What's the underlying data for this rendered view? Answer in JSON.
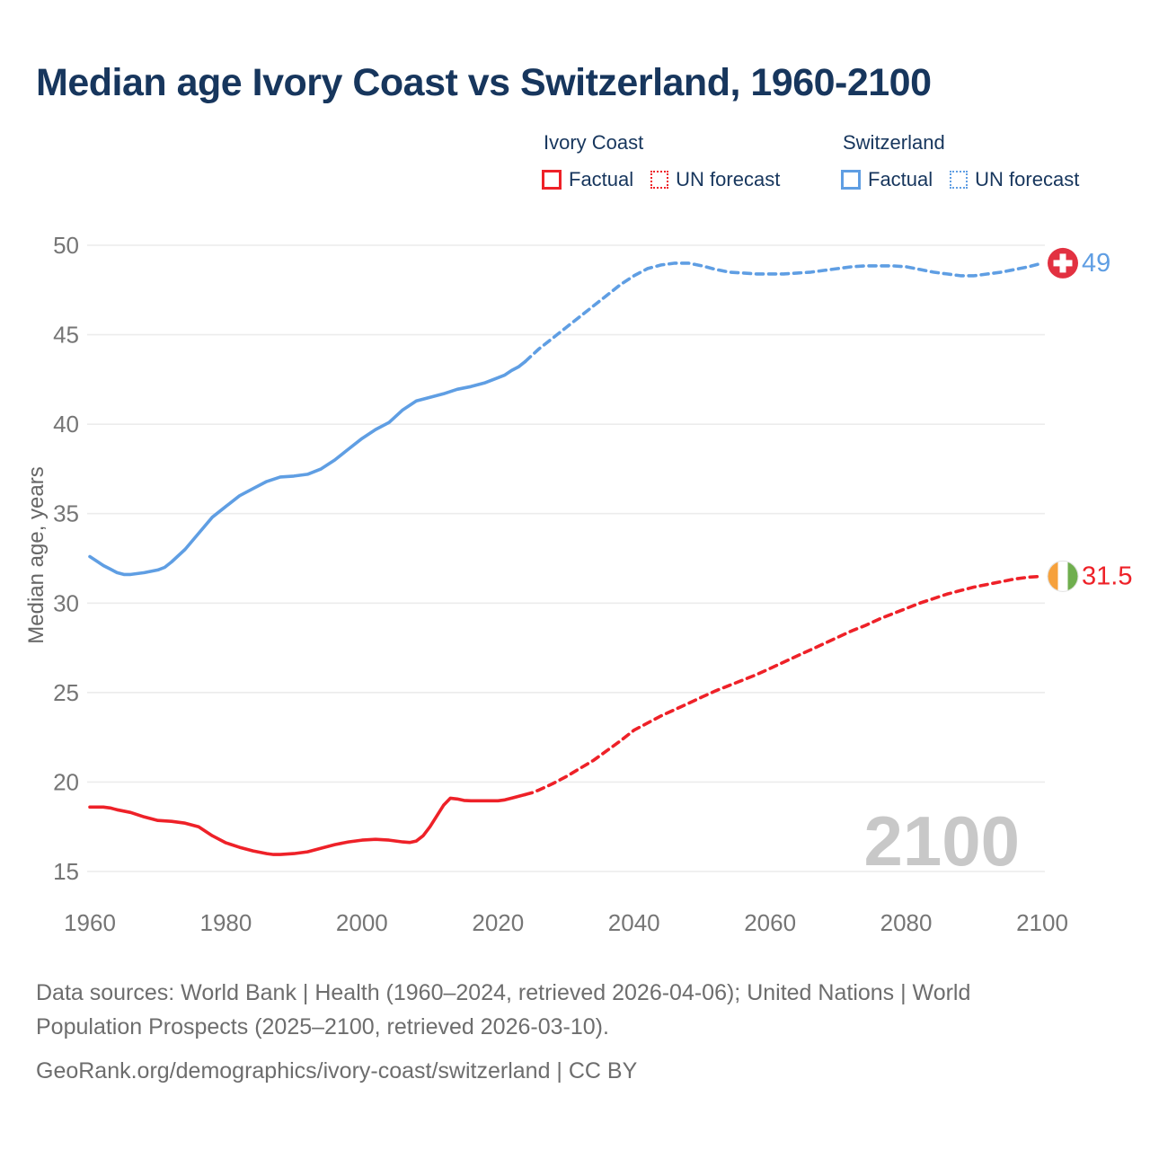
{
  "title": "Median age Ivory Coast vs Switzerland, 1960-2100",
  "legend": {
    "groups": [
      {
        "name": "Ivory Coast",
        "color": "#ee2128",
        "items": [
          {
            "label": "Factual",
            "style": "solid"
          },
          {
            "label": "UN forecast",
            "style": "dotted"
          }
        ]
      },
      {
        "name": "Switzerland",
        "color": "#5f9ee3",
        "items": [
          {
            "label": "Factual",
            "style": "solid"
          },
          {
            "label": "UN forecast",
            "style": "dotted"
          }
        ]
      }
    ]
  },
  "chart_data": {
    "type": "line",
    "title": "Median age Ivory Coast vs Switzerland, 1960-2100",
    "xlabel": "",
    "ylabel": "Median age, years",
    "xlim": [
      1960,
      2100
    ],
    "ylim": [
      15,
      50
    ],
    "xticks": [
      1960,
      1980,
      2000,
      2020,
      2040,
      2060,
      2080,
      2100
    ],
    "yticks": [
      15,
      20,
      25,
      30,
      35,
      40,
      45,
      50
    ],
    "grid": "horizontal-only",
    "legend_position": "top",
    "watermark": "2100",
    "series": [
      {
        "name": "Switzerland — Factual",
        "color": "#5f9ee3",
        "dashed": false,
        "points": [
          [
            1960,
            32.6
          ],
          [
            1961,
            32.35
          ],
          [
            1962,
            32.1
          ],
          [
            1963,
            31.9
          ],
          [
            1964,
            31.7
          ],
          [
            1965,
            31.6
          ],
          [
            1966,
            31.6
          ],
          [
            1967,
            31.65
          ],
          [
            1968,
            31.7
          ],
          [
            1970,
            31.85
          ],
          [
            1971,
            32.0
          ],
          [
            1972,
            32.3
          ],
          [
            1974,
            33.0
          ],
          [
            1976,
            33.9
          ],
          [
            1978,
            34.8
          ],
          [
            1980,
            35.4
          ],
          [
            1982,
            36.0
          ],
          [
            1984,
            36.4
          ],
          [
            1986,
            36.8
          ],
          [
            1988,
            37.05
          ],
          [
            1990,
            37.1
          ],
          [
            1992,
            37.2
          ],
          [
            1994,
            37.5
          ],
          [
            1996,
            38.0
          ],
          [
            1998,
            38.6
          ],
          [
            2000,
            39.2
          ],
          [
            2002,
            39.7
          ],
          [
            2004,
            40.1
          ],
          [
            2006,
            40.8
          ],
          [
            2008,
            41.3
          ],
          [
            2010,
            41.5
          ],
          [
            2012,
            41.7
          ],
          [
            2014,
            41.95
          ],
          [
            2016,
            42.1
          ],
          [
            2018,
            42.3
          ],
          [
            2020,
            42.6
          ],
          [
            2021,
            42.75
          ],
          [
            2022,
            43.0
          ],
          [
            2023,
            43.2
          ],
          [
            2024,
            43.5
          ]
        ]
      },
      {
        "name": "Switzerland — UN forecast",
        "color": "#5f9ee3",
        "dashed": true,
        "points": [
          [
            2024,
            43.5
          ],
          [
            2026,
            44.2
          ],
          [
            2028,
            44.8
          ],
          [
            2030,
            45.4
          ],
          [
            2032,
            46.0
          ],
          [
            2034,
            46.6
          ],
          [
            2036,
            47.2
          ],
          [
            2038,
            47.8
          ],
          [
            2040,
            48.3
          ],
          [
            2042,
            48.7
          ],
          [
            2044,
            48.9
          ],
          [
            2046,
            49.0
          ],
          [
            2048,
            49.0
          ],
          [
            2050,
            48.85
          ],
          [
            2052,
            48.65
          ],
          [
            2054,
            48.5
          ],
          [
            2056,
            48.45
          ],
          [
            2058,
            48.4
          ],
          [
            2060,
            48.4
          ],
          [
            2062,
            48.4
          ],
          [
            2064,
            48.45
          ],
          [
            2066,
            48.5
          ],
          [
            2068,
            48.6
          ],
          [
            2070,
            48.7
          ],
          [
            2072,
            48.8
          ],
          [
            2074,
            48.85
          ],
          [
            2076,
            48.85
          ],
          [
            2078,
            48.85
          ],
          [
            2080,
            48.8
          ],
          [
            2082,
            48.65
          ],
          [
            2084,
            48.5
          ],
          [
            2086,
            48.4
          ],
          [
            2088,
            48.3
          ],
          [
            2090,
            48.3
          ],
          [
            2092,
            48.4
          ],
          [
            2094,
            48.5
          ],
          [
            2096,
            48.65
          ],
          [
            2098,
            48.8
          ],
          [
            2100,
            49.0
          ]
        ]
      },
      {
        "name": "Ivory Coast — Factual",
        "color": "#ee2128",
        "dashed": false,
        "points": [
          [
            1960,
            18.6
          ],
          [
            1962,
            18.6
          ],
          [
            1963,
            18.55
          ],
          [
            1964,
            18.45
          ],
          [
            1966,
            18.3
          ],
          [
            1968,
            18.05
          ],
          [
            1970,
            17.85
          ],
          [
            1972,
            17.8
          ],
          [
            1974,
            17.7
          ],
          [
            1976,
            17.5
          ],
          [
            1978,
            17.0
          ],
          [
            1980,
            16.6
          ],
          [
            1982,
            16.35
          ],
          [
            1984,
            16.15
          ],
          [
            1986,
            16.0
          ],
          [
            1987,
            15.95
          ],
          [
            1988,
            15.95
          ],
          [
            1990,
            16.0
          ],
          [
            1992,
            16.1
          ],
          [
            1994,
            16.3
          ],
          [
            1996,
            16.5
          ],
          [
            1998,
            16.65
          ],
          [
            2000,
            16.75
          ],
          [
            2002,
            16.8
          ],
          [
            2004,
            16.75
          ],
          [
            2006,
            16.65
          ],
          [
            2007,
            16.62
          ],
          [
            2008,
            16.7
          ],
          [
            2009,
            17.0
          ],
          [
            2010,
            17.5
          ],
          [
            2011,
            18.1
          ],
          [
            2012,
            18.7
          ],
          [
            2013,
            19.1
          ],
          [
            2014,
            19.05
          ],
          [
            2015,
            18.97
          ],
          [
            2016,
            18.95
          ],
          [
            2018,
            18.95
          ],
          [
            2020,
            18.95
          ],
          [
            2021,
            19.0
          ],
          [
            2022,
            19.1
          ],
          [
            2023,
            19.2
          ],
          [
            2024,
            19.3
          ]
        ]
      },
      {
        "name": "Ivory Coast — UN forecast",
        "color": "#ee2128",
        "dashed": true,
        "points": [
          [
            2024,
            19.3
          ],
          [
            2025,
            19.4
          ],
          [
            2026,
            19.55
          ],
          [
            2028,
            19.9
          ],
          [
            2030,
            20.3
          ],
          [
            2032,
            20.75
          ],
          [
            2034,
            21.2
          ],
          [
            2036,
            21.75
          ],
          [
            2038,
            22.3
          ],
          [
            2040,
            22.9
          ],
          [
            2042,
            23.3
          ],
          [
            2044,
            23.7
          ],
          [
            2046,
            24.05
          ],
          [
            2048,
            24.4
          ],
          [
            2050,
            24.75
          ],
          [
            2052,
            25.1
          ],
          [
            2054,
            25.4
          ],
          [
            2056,
            25.7
          ],
          [
            2058,
            26.0
          ],
          [
            2060,
            26.35
          ],
          [
            2062,
            26.7
          ],
          [
            2064,
            27.05
          ],
          [
            2066,
            27.4
          ],
          [
            2068,
            27.75
          ],
          [
            2070,
            28.1
          ],
          [
            2072,
            28.45
          ],
          [
            2074,
            28.75
          ],
          [
            2076,
            29.1
          ],
          [
            2078,
            29.4
          ],
          [
            2080,
            29.7
          ],
          [
            2082,
            30.0
          ],
          [
            2084,
            30.25
          ],
          [
            2086,
            30.5
          ],
          [
            2088,
            30.7
          ],
          [
            2090,
            30.9
          ],
          [
            2092,
            31.05
          ],
          [
            2094,
            31.2
          ],
          [
            2096,
            31.35
          ],
          [
            2098,
            31.45
          ],
          [
            2100,
            31.5
          ]
        ]
      }
    ],
    "end_markers": [
      {
        "country": "Switzerland",
        "flag": "switzerland-flag",
        "value": 49,
        "label": "49",
        "label_color": "#5f9ee3"
      },
      {
        "country": "Ivory Coast",
        "flag": "ivory-coast-flag",
        "value": 31.5,
        "label": "31.5",
        "label_color": "#ee2128"
      }
    ]
  },
  "colors": {
    "ivory_coast": "#ee2128",
    "switzerland": "#5f9ee3",
    "title_navy": "#17365d",
    "tick_gray": "#757575",
    "grid_gray": "#ececec",
    "watermark_gray": "#c8c8c8",
    "swiss_flag_red": "#e23141",
    "civ_flag_orange": "#f6a13c",
    "civ_flag_green": "#6fae4e"
  },
  "footer": {
    "sources": "Data sources: World Bank | Health (1960–2024, retrieved 2026-04-06); United Nations | World Population Prospects (2025–2100, retrieved 2026-03-10).",
    "attribution": "GeoRank.org/demographics/ivory-coast/switzerland | CC BY"
  }
}
